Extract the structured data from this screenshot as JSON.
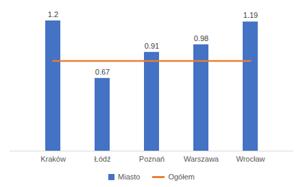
{
  "chart_data": {
    "type": "bar",
    "categories": [
      "Kraków",
      "Łódź",
      "Poznań",
      "Warszawa",
      "Wrocław"
    ],
    "series": [
      {
        "name": "Miasto",
        "type": "bar",
        "color": "#4472c4",
        "values": [
          1.2,
          0.67,
          0.91,
          0.98,
          1.19
        ]
      },
      {
        "name": "Ogółem",
        "type": "line",
        "color": "#ed7d31",
        "values": [
          0.83,
          0.83,
          0.83,
          0.83,
          0.83
        ]
      }
    ],
    "ylim": [
      0,
      1.3
    ],
    "data_labels": true,
    "tick_labels": "x",
    "legend": "bottom",
    "grid": false
  }
}
